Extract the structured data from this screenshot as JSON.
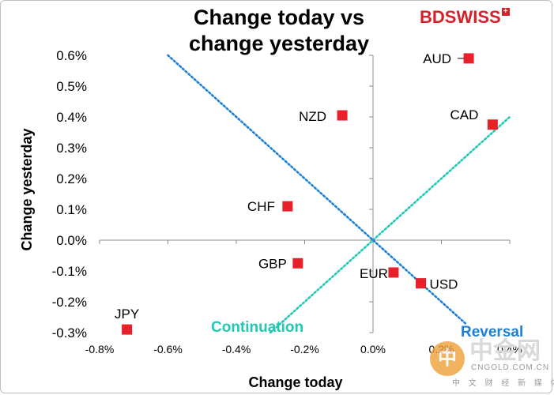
{
  "title_line1": "Change today vs",
  "title_line2": "change yesterday",
  "logo": {
    "text": "BDSWISS",
    "mark": "+",
    "color": "#d6202a"
  },
  "watermark": {
    "icon": "中",
    "brand": "中金网",
    "domain": "CNGOLD.COM.CN",
    "tagline": "中 文 财 经 新 媒 体"
  },
  "colors": {
    "marker": "#e8202a",
    "continuation": "#1fc9b4",
    "reversal": "#1d7fd6"
  },
  "chart_data": {
    "type": "scatter",
    "title": "Change today vs change yesterday",
    "xlabel": "Change today",
    "ylabel": "Change yesterday",
    "xlim": [
      -0.8,
      0.4
    ],
    "ylim": [
      -0.3,
      0.6
    ],
    "x_ticks": [
      "-0.8%",
      "-0.6%",
      "-0.4%",
      "-0.2%",
      "0.0%",
      "0.2%",
      "0.4%"
    ],
    "y_ticks": [
      "-0.3%",
      "-0.2%",
      "-0.1%",
      "0.0%",
      "0.1%",
      "0.2%",
      "0.3%",
      "0.4%",
      "0.5%",
      "0.6%"
    ],
    "grid": false,
    "points": [
      {
        "label": "AUD",
        "x": 0.28,
        "y": 0.59
      },
      {
        "label": "NZD",
        "x": -0.09,
        "y": 0.405
      },
      {
        "label": "CAD",
        "x": 0.35,
        "y": 0.375
      },
      {
        "label": "CHF",
        "x": -0.25,
        "y": 0.11
      },
      {
        "label": "GBP",
        "x": -0.22,
        "y": -0.075
      },
      {
        "label": "EUR",
        "x": 0.06,
        "y": -0.105
      },
      {
        "label": "USD",
        "x": 0.14,
        "y": -0.14
      },
      {
        "label": "JPY",
        "x": -0.72,
        "y": -0.29
      }
    ],
    "lines": [
      {
        "name": "Continuation",
        "from": [
          -0.3,
          -0.3
        ],
        "to": [
          0.4,
          0.4
        ]
      },
      {
        "name": "Reversal",
        "from": [
          -0.6,
          0.6
        ],
        "to": [
          0.27,
          -0.27
        ]
      }
    ]
  }
}
